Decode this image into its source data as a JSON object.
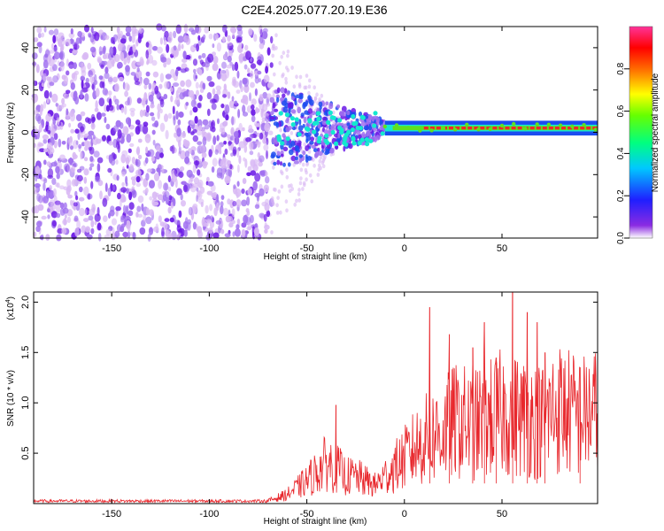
{
  "title": "C2E4.2025.077.20.19.E36",
  "colors": {
    "snr_line": "#e8262b",
    "frame": "#000000",
    "scatter_faint": "#d8b8f4",
    "scatter_mid": "#a070f0",
    "scatter_dark": "#6a18e6",
    "signal_blue": "#1c4cf0",
    "signal_cyan": "#14e8d0",
    "signal_green": "#60e020",
    "signal_red": "#f0262a"
  },
  "chart_data": [
    {
      "type": "heatmap",
      "title": "C2E4.2025.077.20.19.E36",
      "xlabel": "Height of straight line (km)",
      "ylabel": "Frequency (Hz)",
      "xlim": [
        -190,
        99
      ],
      "ylim": [
        -50,
        50
      ],
      "xticks": [
        -150,
        -100,
        -50,
        0,
        50
      ],
      "yticks": [
        -40,
        -20,
        0,
        20,
        40
      ],
      "colorbar": {
        "label": "Normalized spectral amplitude",
        "range": [
          0.0,
          1.0
        ],
        "ticks": [
          "0.0",
          "0.2",
          "0.4",
          "0.6",
          "0.8"
        ],
        "colormap": "rainbow (purple-blue-cyan-green-yellow-red-magenta)"
      },
      "regions": {
        "broadband_noise_x": [
          -190,
          -68
        ],
        "turbulent_onset_x": [
          -68,
          -10
        ],
        "coherent_signal_x": [
          -10,
          99
        ],
        "coherent_signal_frequency": 2
      },
      "grid": false
    },
    {
      "type": "line",
      "xlabel": "Height of straight line (km)",
      "ylabel": "SNR (10 * v/v)",
      "y_multiplier": "(x10",
      "y_multiplier_exp": "4",
      "y_multiplier_close": ")",
      "xlim": [
        -190,
        99
      ],
      "ylim": [
        0,
        2.1
      ],
      "xticks": [
        -150,
        -100,
        -50,
        0,
        50
      ],
      "yticks": [
        0.5,
        1.0,
        1.5,
        2.0
      ],
      "ytick_labels": [
        "0.5",
        "1.0",
        "1.5",
        "2.0"
      ],
      "envelope_x": [
        -190,
        -70,
        -60,
        -50,
        -45,
        -40,
        -35,
        -30,
        -25,
        -20,
        -15,
        -10,
        -5,
        0,
        5,
        10,
        15,
        20,
        25,
        30,
        35,
        40,
        45,
        50,
        55,
        60,
        65,
        70,
        75,
        80,
        85,
        90,
        95,
        99
      ],
      "envelope_y": [
        0.02,
        0.03,
        0.1,
        0.25,
        0.35,
        0.45,
        0.4,
        0.3,
        0.3,
        0.25,
        0.2,
        0.3,
        0.4,
        0.5,
        0.6,
        0.7,
        0.75,
        0.8,
        0.9,
        0.9,
        0.85,
        0.9,
        0.95,
        1.0,
        1.0,
        0.95,
        0.95,
        0.9,
        1.0,
        1.05,
        1.0,
        0.95,
        1.0,
        1.0
      ],
      "peaks": [
        {
          "x": 55.5,
          "y": 2.1
        },
        {
          "x": 63,
          "y": 1.9
        },
        {
          "x": 13,
          "y": 1.95
        },
        {
          "x": 41,
          "y": 1.8
        },
        {
          "x": 68,
          "y": 1.8
        },
        {
          "x": -35,
          "y": 0.98
        },
        {
          "x": 23,
          "y": 1.68
        },
        {
          "x": 72,
          "y": 1.5
        },
        {
          "x": 47,
          "y": 1.45
        },
        {
          "x": 90,
          "y": 1.35
        },
        {
          "x": 35,
          "y": 1.55
        }
      ],
      "grid": false
    }
  ]
}
